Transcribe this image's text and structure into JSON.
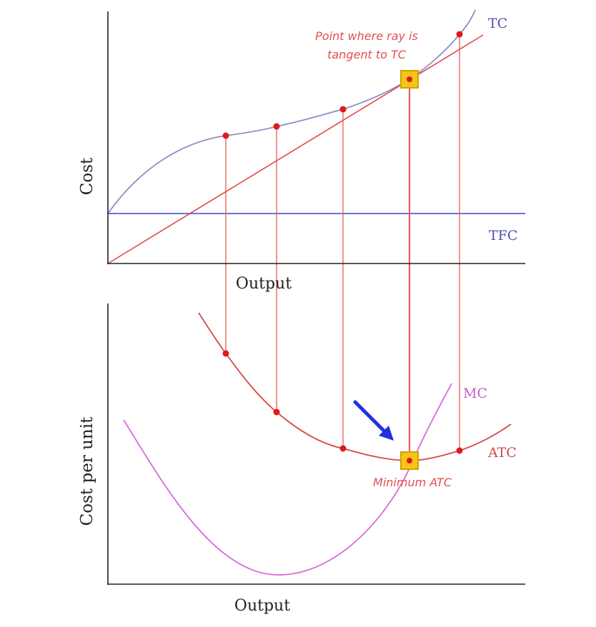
{
  "colors": {
    "tc": "#8a8fc6",
    "tfc": "#3a44c8",
    "ray": "#e04848",
    "atc": "#d84848",
    "mc": "#d86ad8",
    "drop": "#e85b5b",
    "dot": "#e01818",
    "marker_fill": "#f5c518",
    "marker_border": "#d4a000",
    "label_tc": "#4f4fb0",
    "label_atc": "#cc4b4b",
    "label_mc": "#c45cc4",
    "annotation": "#e05050",
    "arrow": "#2030e0",
    "axis": "#222222",
    "text": "#222222"
  },
  "chart_data": [
    {
      "type": "line",
      "panel": "top",
      "ylabel": "Cost",
      "xlabel": "Output",
      "series": [
        {
          "name": "TC",
          "key": "tc"
        },
        {
          "name": "TFC",
          "key": "tfc"
        },
        {
          "name": "",
          "key": "ray"
        }
      ],
      "annotation": [
        "Point where ray is",
        "tangent to TC"
      ],
      "points_on_tc": 5,
      "tangent_marker": "square"
    },
    {
      "type": "line",
      "panel": "bottom",
      "ylabel": "Cost per unit",
      "xlabel": "Output",
      "series": [
        {
          "name": "ATC",
          "key": "atc"
        },
        {
          "name": "MC",
          "key": "mc"
        }
      ],
      "annotation": "Minimum ATC",
      "points_on_atc": 5,
      "minimum_marker": "square"
    }
  ]
}
